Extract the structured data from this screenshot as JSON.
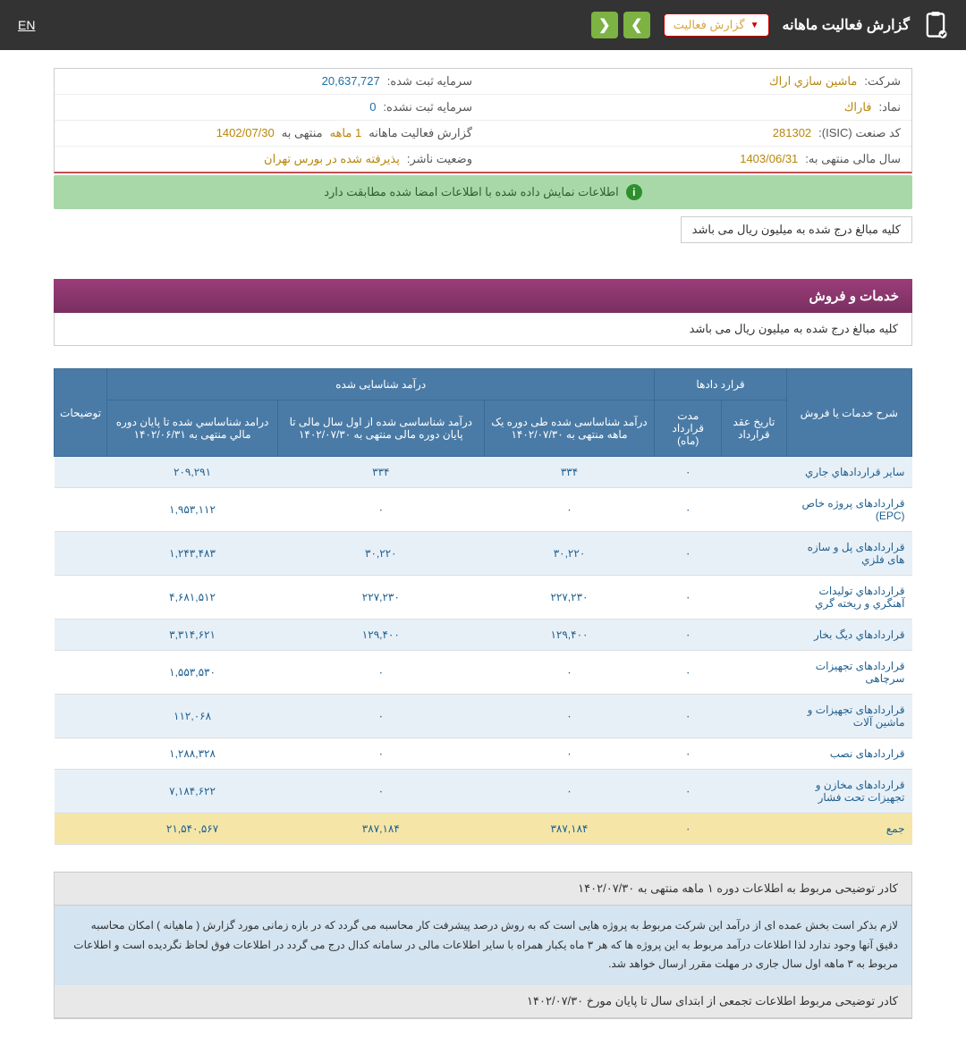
{
  "topbar": {
    "title": "گزارش فعالیت ماهانه",
    "dropdown": "گزارش فعالیت",
    "lang": "EN"
  },
  "info": {
    "right": [
      {
        "label": "شرکت:",
        "value": "ماشين سازي اراك"
      },
      {
        "label": "نماد:",
        "value": "فاراك"
      },
      {
        "label": "کد صنعت (ISIC):",
        "value": "281302"
      },
      {
        "label": "سال مالی منتهی به:",
        "value": "1403/06/31"
      }
    ],
    "left": [
      {
        "label": "سرمایه ثبت شده:",
        "value": "20,637,727",
        "cls": "blue"
      },
      {
        "label": "سرمایه ثبت نشده:",
        "value": "0",
        "cls": "blue"
      },
      {
        "label": "گزارش فعالیت ماهانه",
        "value": "1 ماهه",
        "suffix": "منتهی به",
        "value2": "1402/07/30"
      },
      {
        "label": "وضعیت ناشر:",
        "value": "پذيرفته شده در بورس تهران"
      }
    ]
  },
  "verify": "اطلاعات نمایش داده شده با اطلاعات امضا شده مطابقت دارد",
  "note": "کلیه مبالغ درج شده به میلیون ریال می باشد",
  "section": {
    "title": "خدمات و فروش",
    "sub": "کلیه مبالغ درج شده به میلیون ریال می باشد"
  },
  "table": {
    "headers": {
      "desc": "شرح خدمات یا فروش",
      "contracts_group": "قرارد دادها",
      "date": "تاریخ عقد قرارداد",
      "duration": "مدت قرارداد (ماه)",
      "revenue_group": "درآمد شناسایی شده",
      "rev1": "درآمد شناساسی شده طی دوره یک ماهه منتهی به ۱۴۰۲/۰۷/۳۰",
      "rev2": "درآمد شناساسی شده از اول سال مالی تا پایان دوره مالی منتهی به ۱۴۰۲/۰۷/۳۰",
      "rev3": "درامد شناساسي شده تا پایان دوره مالي منتهی به ۱۴۰۲/۰۶/۳۱",
      "notes": "توضیحات"
    },
    "rows": [
      {
        "desc": "سایر قراردادهاي جاري",
        "date": "",
        "dur": "۰",
        "r1": "۳۳۴",
        "r2": "۳۳۴",
        "r3": "۲۰۹,۲۹۱",
        "notes": ""
      },
      {
        "desc": "قراردادهای پروژه خاص (EPC)",
        "date": "",
        "dur": "۰",
        "r1": "۰",
        "r2": "۰",
        "r3": "۱,۹۵۳,۱۱۲",
        "notes": ""
      },
      {
        "desc": "قراردادهای پل و سازه های فلزي",
        "date": "",
        "dur": "۰",
        "r1": "۳۰,۲۲۰",
        "r2": "۳۰,۲۲۰",
        "r3": "۱,۲۴۳,۴۸۳",
        "notes": ""
      },
      {
        "desc": "قراردادهاي تولیدات آهنگري و ریخته گري",
        "date": "",
        "dur": "۰",
        "r1": "۲۲۷,۲۳۰",
        "r2": "۲۲۷,۲۳۰",
        "r3": "۴,۶۸۱,۵۱۲",
        "notes": ""
      },
      {
        "desc": "قراردادهاي دیگ بخار",
        "date": "",
        "dur": "۰",
        "r1": "۱۲۹,۴۰۰",
        "r2": "۱۲۹,۴۰۰",
        "r3": "۳,۳۱۴,۶۲۱",
        "notes": ""
      },
      {
        "desc": "قراردادهای تجهیزات سرچاهی",
        "date": "",
        "dur": "۰",
        "r1": "۰",
        "r2": "۰",
        "r3": "۱,۵۵۳,۵۳۰",
        "notes": ""
      },
      {
        "desc": "قراردادهای تجهیزات و ماشین آلات",
        "date": "",
        "dur": "۰",
        "r1": "۰",
        "r2": "۰",
        "r3": "۱۱۲,۰۶۸",
        "notes": ""
      },
      {
        "desc": "قراردادهای نصب",
        "date": "",
        "dur": "۰",
        "r1": "۰",
        "r2": "۰",
        "r3": "۱,۲۸۸,۳۲۸",
        "notes": ""
      },
      {
        "desc": "قراردادهای مخازن و تجهیزات تحت فشار",
        "date": "",
        "dur": "۰",
        "r1": "۰",
        "r2": "۰",
        "r3": "۷,۱۸۴,۶۲۲",
        "notes": ""
      }
    ],
    "sum": {
      "desc": "جمع",
      "date": "",
      "dur": "۰",
      "r1": "۳۸۷,۱۸۴",
      "r2": "۳۸۷,۱۸۴",
      "r3": "۲۱,۵۴۰,۵۶۷",
      "notes": ""
    }
  },
  "footer": {
    "h1": "کادر توضیحی مربوط به اطلاعات دوره ۱ ماهه منتهی به ۱۴۰۲/۰۷/۳۰",
    "b1": "لازم بذکر است بخش عمده ای از درآمد این شرکت مربوط به پروژه هایی است که به روش درصد پیشرفت کار محاسبه می گردد که در بازه زمانی مورد گزارش ( ماهیانه ) امکان محاسبه دقیق آنها وجود ندارد لذا اطلاعات درآمد مربوط به این پروژه ها که هر ۳ ماه یکبار همراه با سایر اطلاعات مالی در سامانه کدال درج می گردد در اطلاعات فوق لحاظ نگردیده است و اطلاعات مربوط به ۳ ماهه اول سال جاری در مهلت مقرر ارسال خواهد شد.",
    "h2": "کادر توضیحی مربوط اطلاعات تجمعی از ابتدای سال تا پایان مورخ ۱۴۰۲/۰۷/۳۰"
  },
  "colors": {
    "topbar": "#333333",
    "header_bg": "#4a7ba6",
    "row_odd": "#e8f0f7",
    "sum_row": "#f5e6a8",
    "section": "#9b3d7a",
    "verify": "#a8d8a8"
  }
}
